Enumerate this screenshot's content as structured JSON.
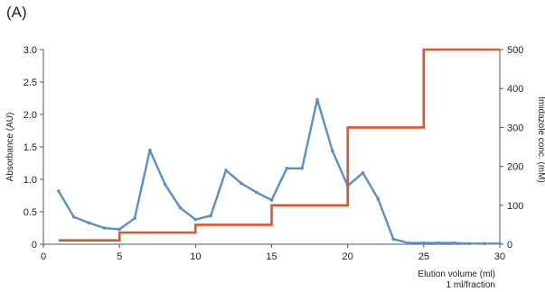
{
  "panel_label": "(A)",
  "chart_data": {
    "type": "line",
    "title": "",
    "xlabel": "Elution volume (ml)",
    "xlabel_sub": "1 ml/fraction",
    "ylabel_left": "Absorbance (AU)",
    "ylabel_right": "Imidazole conc. (mM)",
    "xlim": [
      0,
      30
    ],
    "ylim_left": [
      0,
      3.0
    ],
    "ylim_right": [
      0,
      500
    ],
    "x_ticks": [
      0,
      5,
      10,
      15,
      20,
      25,
      30
    ],
    "y_left_ticks": [
      "0",
      "0.5",
      "1.0",
      "1.5",
      "2.0",
      "2.5",
      "3.0"
    ],
    "y_right_ticks": [
      "0",
      "100",
      "200",
      "300",
      "400",
      "500"
    ],
    "grid": false,
    "legend": "none",
    "series": [
      {
        "axis": "left",
        "style": "line-markers",
        "color": "#5b8fc9",
        "x": [
          1,
          2,
          3,
          4,
          5,
          6,
          7,
          8,
          9,
          10,
          11,
          12,
          13,
          14,
          15,
          16,
          17,
          18,
          19,
          20,
          21,
          22,
          23,
          24,
          25,
          26,
          27,
          28,
          29,
          30
        ],
        "values": [
          0.82,
          0.42,
          0.33,
          0.25,
          0.23,
          0.4,
          1.45,
          0.92,
          0.56,
          0.38,
          0.44,
          1.14,
          0.94,
          0.8,
          0.68,
          1.17,
          1.17,
          2.23,
          1.44,
          0.9,
          1.1,
          0.7,
          0.08,
          0.02,
          0.02,
          0.02,
          0.02,
          0.01,
          0.01,
          0.01
        ]
      },
      {
        "axis": "right",
        "style": "step",
        "color": "#e4542b",
        "x": [
          1,
          5,
          5,
          10,
          10,
          15,
          15,
          20,
          20,
          25,
          25,
          30
        ],
        "values": [
          10,
          10,
          30,
          30,
          50,
          50,
          100,
          100,
          300,
          300,
          500,
          500
        ]
      }
    ]
  }
}
